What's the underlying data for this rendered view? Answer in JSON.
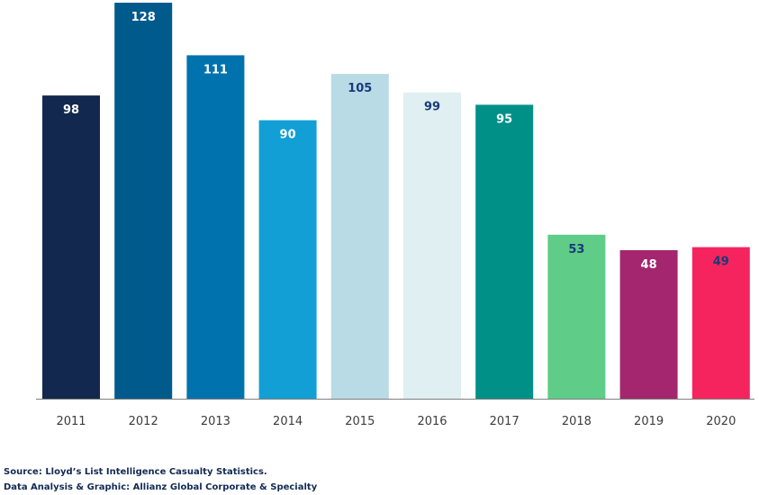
{
  "chart_data": {
    "type": "bar",
    "categories": [
      "2011",
      "2012",
      "2013",
      "2014",
      "2015",
      "2016",
      "2017",
      "2018",
      "2019",
      "2020"
    ],
    "values": [
      98,
      128,
      111,
      90,
      105,
      99,
      95,
      53,
      48,
      49
    ],
    "value_labels": [
      "98",
      "128",
      "111",
      "90",
      "105",
      "99",
      "95",
      "53",
      "48",
      "49"
    ],
    "bar_colors": [
      "#13284f",
      "#005a8c",
      "#0073ae",
      "#129fd5",
      "#b8dbe6",
      "#dfeff2",
      "#009088",
      "#5fcc88",
      "#a3266e",
      "#f6245e"
    ],
    "label_colors": [
      "#ffffff",
      "#ffffff",
      "#ffffff",
      "#ffffff",
      "#1a3a7a",
      "#1a3a7a",
      "#ffffff",
      "#1a3a7a",
      "#ffffff",
      "#1a3a7a"
    ],
    "title": "",
    "xlabel": "",
    "ylabel": "",
    "ylim": [
      0,
      128
    ],
    "grid": false,
    "axis_color": "#7f7f7f",
    "tick_label_color": "#3c3c3c"
  },
  "source": {
    "line1": "Source: Lloyd’s List Intelligence Casualty Statistics.",
    "line2": "Data Analysis & Graphic: Allianz Global Corporate & Specialty"
  }
}
